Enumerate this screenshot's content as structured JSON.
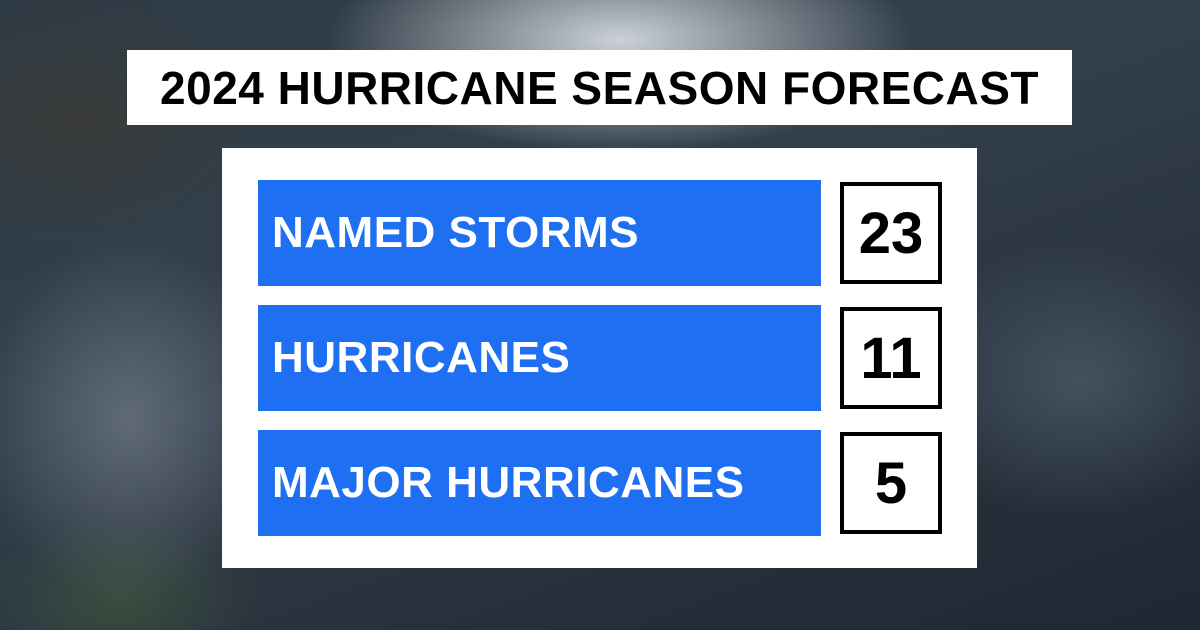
{
  "title": "2024 HURRICANE SEASON FORECAST",
  "rows": [
    {
      "label": "NAMED STORMS",
      "value": 23
    },
    {
      "label": "HURRICANES",
      "value": 11
    },
    {
      "label": "MAJOR HURRICANES",
      "value": 5
    }
  ]
}
